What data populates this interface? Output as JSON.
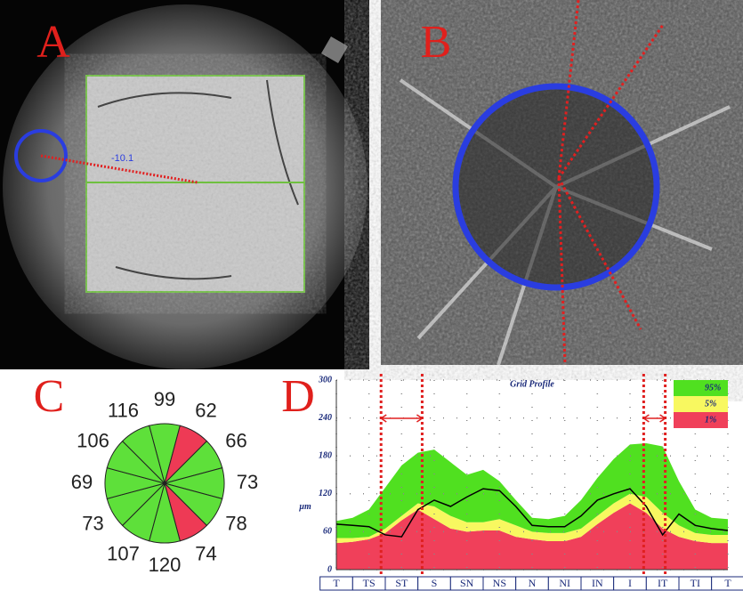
{
  "panels": {
    "A": {
      "label": "A",
      "annotation": "-10.1"
    },
    "B": {
      "label": "B"
    },
    "C": {
      "label": "C"
    },
    "D": {
      "label": "D"
    }
  },
  "chart_data": [
    {
      "type": "clock",
      "values": [
        99,
        62,
        66,
        73,
        78,
        74,
        120,
        107,
        73,
        69,
        106,
        116
      ],
      "colors": [
        "#5ee03a",
        "#ee3a55",
        "#5ee03a",
        "#5ee03a",
        "#5ee03a",
        "#ee3a55",
        "#5ee03a",
        "#5ee03a",
        "#5ee03a",
        "#5ee03a",
        "#5ee03a",
        "#5ee03a"
      ]
    },
    {
      "type": "stacked-area",
      "title": "Grid Profile",
      "y_label": "µm",
      "x": [
        0,
        0.5,
        1,
        1.5,
        2,
        2.5,
        3,
        3.5,
        4,
        4.5,
        5,
        5.5,
        6,
        6.5,
        7,
        7.5,
        8,
        8.5,
        9,
        9.5,
        10,
        10.5,
        11,
        11.5,
        12
      ],
      "xlim": [
        0,
        12
      ],
      "xticks": [
        {
          "value": 0,
          "label": "T"
        },
        {
          "value": 1,
          "label": "TS"
        },
        {
          "value": 2,
          "label": "ST"
        },
        {
          "value": 3,
          "label": "S"
        },
        {
          "value": 4,
          "label": "SN"
        },
        {
          "value": 5,
          "label": "NS"
        },
        {
          "value": 6,
          "label": "N"
        },
        {
          "value": 7,
          "label": "NI"
        },
        {
          "value": 8,
          "label": "IN"
        },
        {
          "value": 9,
          "label": "I"
        },
        {
          "value": 10,
          "label": "IT"
        },
        {
          "value": 11,
          "label": "TI"
        },
        {
          "value": 12,
          "label": "T"
        }
      ],
      "ylim": [
        0,
        300
      ],
      "yticks": [
        0,
        60,
        120,
        180,
        240,
        300
      ],
      "grid": true,
      "series": [
        {
          "name": "1%",
          "color": "#f0405a",
          "values": [
            42,
            44,
            48,
            58,
            78,
            95,
            80,
            65,
            60,
            62,
            62,
            52,
            48,
            45,
            45,
            52,
            72,
            90,
            105,
            90,
            65,
            52,
            45,
            42,
            42
          ]
        },
        {
          "name": "5%",
          "color": "#f8f860",
          "values": [
            8,
            6,
            4,
            7,
            7,
            10,
            20,
            20,
            15,
            13,
            18,
            18,
            12,
            13,
            13,
            13,
            13,
            15,
            15,
            25,
            25,
            18,
            13,
            13,
            13
          ]
        },
        {
          "name": "95%",
          "color": "#50e020",
          "values": [
            27,
            32,
            43,
            65,
            80,
            80,
            90,
            85,
            75,
            83,
            60,
            40,
            22,
            22,
            27,
            45,
            60,
            70,
            78,
            85,
            105,
            70,
            37,
            27,
            25
          ]
        }
      ],
      "line": {
        "color": "#000000",
        "values": [
          72,
          70,
          68,
          55,
          52,
          95,
          110,
          100,
          115,
          128,
          125,
          100,
          70,
          68,
          68,
          85,
          110,
          120,
          128,
          100,
          55,
          88,
          70,
          65,
          62
        ]
      },
      "xmarkers": [
        1.37,
        2.63,
        9.42,
        10.08
      ],
      "marker_color": "#e02020"
    }
  ]
}
